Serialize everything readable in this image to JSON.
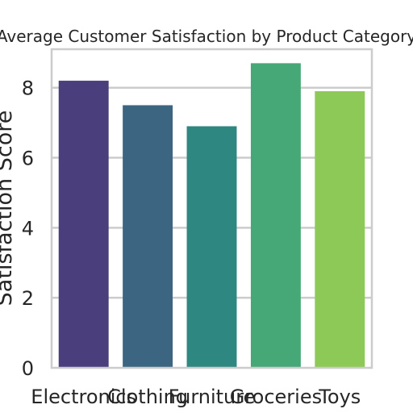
{
  "chart_data": {
    "type": "bar",
    "title": "Average Customer Satisfaction by Product Category",
    "xlabel": "",
    "ylabel": "Satisfaction Score",
    "categories": [
      "Electronics",
      "Clothing",
      "Furniture",
      "Groceries",
      "Toys"
    ],
    "values": [
      8.2,
      7.5,
      6.9,
      8.7,
      7.9
    ],
    "colors": [
      "#4a3f7c",
      "#3c6582",
      "#2e8780",
      "#46a877",
      "#8dc956"
    ],
    "ylim": [
      0,
      9.1
    ],
    "yticks": [
      0,
      2,
      4,
      6,
      8
    ],
    "grid": true,
    "legend": "none"
  }
}
